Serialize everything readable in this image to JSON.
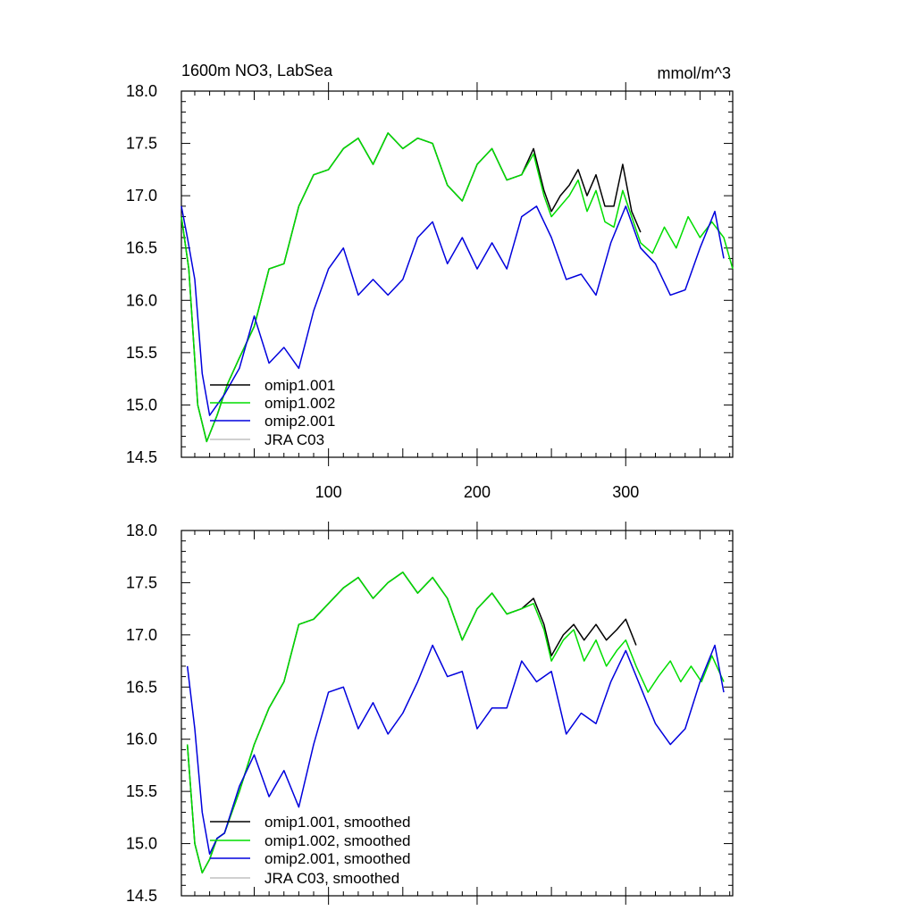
{
  "colors": {
    "omip1_001": "#000000",
    "omip1_002": "#00dd00",
    "omip2_001": "#0000dd",
    "jra_c03": "#c0c0c0"
  },
  "chart_data": [
    {
      "type": "line",
      "title": "1600m NO3, LabSea",
      "units": "mmol/m^3",
      "xlim": [
        1,
        372
      ],
      "ylim": [
        14.5,
        18.0
      ],
      "xticks": [
        100,
        200,
        300
      ],
      "xtick_labels": [
        "100",
        "200",
        "300"
      ],
      "yticks": [
        14.5,
        15.0,
        15.5,
        16.0,
        16.5,
        17.0,
        17.5,
        18.0
      ],
      "ytick_labels": [
        "14.5",
        "15.0",
        "15.5",
        "16.0",
        "16.5",
        "17.0",
        "17.5",
        "18.0"
      ],
      "legend": [
        "omip1.001",
        "omip1.002",
        "omip2.001",
        "JRA C03"
      ],
      "series": [
        {
          "name": "omip1.001",
          "color_key": "omip1_001",
          "x": [
            1,
            6,
            12,
            18,
            25,
            32,
            40,
            50,
            60,
            70,
            80,
            90,
            100,
            110,
            120,
            130,
            140,
            150,
            160,
            170,
            180,
            190,
            200,
            210,
            220,
            230,
            238,
            245,
            250,
            256,
            262,
            268,
            274,
            280,
            286,
            292,
            298,
            304,
            310
          ],
          "y": [
            16.8,
            16.3,
            15.0,
            14.65,
            14.9,
            15.2,
            15.45,
            15.75,
            16.3,
            16.35,
            16.9,
            17.2,
            17.25,
            17.45,
            17.55,
            17.3,
            17.6,
            17.45,
            17.55,
            17.5,
            17.1,
            16.95,
            17.3,
            17.45,
            17.15,
            17.2,
            17.45,
            17.05,
            16.85,
            17.0,
            17.1,
            17.25,
            17.0,
            17.2,
            16.9,
            16.9,
            17.3,
            16.85,
            16.65
          ]
        },
        {
          "name": "omip1.002",
          "color_key": "omip1_002",
          "x": [
            1,
            6,
            12,
            18,
            25,
            32,
            40,
            50,
            60,
            70,
            80,
            90,
            100,
            110,
            120,
            130,
            140,
            150,
            160,
            170,
            180,
            190,
            200,
            210,
            220,
            230,
            238,
            245,
            250,
            256,
            262,
            268,
            274,
            280,
            286,
            292,
            298,
            304,
            310,
            318,
            326,
            334,
            342,
            350,
            358,
            366,
            372
          ],
          "y": [
            16.8,
            16.3,
            15.0,
            14.65,
            14.9,
            15.2,
            15.45,
            15.75,
            16.3,
            16.35,
            16.9,
            17.2,
            17.25,
            17.45,
            17.55,
            17.3,
            17.6,
            17.45,
            17.55,
            17.5,
            17.1,
            16.95,
            17.3,
            17.45,
            17.15,
            17.2,
            17.4,
            17.0,
            16.8,
            16.9,
            17.0,
            17.15,
            16.85,
            17.05,
            16.75,
            16.7,
            17.05,
            16.8,
            16.55,
            16.45,
            16.7,
            16.5,
            16.8,
            16.6,
            16.75,
            16.6,
            16.3
          ]
        },
        {
          "name": "omip2.001",
          "color_key": "omip2_001",
          "x": [
            1,
            5,
            10,
            15,
            20,
            25,
            30,
            40,
            50,
            60,
            70,
            80,
            90,
            100,
            110,
            120,
            130,
            140,
            150,
            160,
            170,
            180,
            190,
            200,
            210,
            220,
            230,
            240,
            250,
            260,
            270,
            280,
            290,
            300,
            310,
            320,
            330,
            340,
            350,
            360,
            366
          ],
          "y": [
            16.9,
            16.6,
            16.2,
            15.3,
            14.9,
            15.0,
            15.1,
            15.35,
            15.85,
            15.4,
            15.55,
            15.35,
            15.9,
            16.3,
            16.5,
            16.05,
            16.2,
            16.05,
            16.2,
            16.6,
            16.75,
            16.35,
            16.6,
            16.3,
            16.55,
            16.3,
            16.8,
            16.9,
            16.6,
            16.2,
            16.25,
            16.05,
            16.55,
            16.9,
            16.5,
            16.35,
            16.05,
            16.1,
            16.5,
            16.85,
            16.4
          ]
        },
        {
          "name": "JRA C03",
          "color_key": "jra_c03",
          "x": [],
          "y": []
        }
      ]
    },
    {
      "type": "line",
      "xlim": [
        1,
        372
      ],
      "ylim": [
        14.5,
        18.0
      ],
      "xticks": [
        100,
        200,
        300
      ],
      "yticks": [
        14.5,
        15.0,
        15.5,
        16.0,
        16.5,
        17.0,
        17.5,
        18.0
      ],
      "ytick_labels": [
        "14.5",
        "15.0",
        "15.5",
        "16.0",
        "16.5",
        "17.0",
        "17.5",
        "18.0"
      ],
      "legend": [
        "omip1.001, smoothed",
        "omip1.002, smoothed",
        "omip2.001, smoothed",
        "JRA C03, smoothed"
      ],
      "series": [
        {
          "name": "omip1.001, smoothed",
          "color_key": "omip1_001",
          "x": [
            5,
            10,
            15,
            20,
            25,
            30,
            35,
            40,
            50,
            60,
            70,
            80,
            90,
            100,
            110,
            120,
            130,
            140,
            150,
            160,
            170,
            180,
            190,
            200,
            210,
            220,
            230,
            238,
            245,
            250,
            258,
            265,
            272,
            280,
            287,
            294,
            300,
            307
          ],
          "y": [
            15.95,
            15.0,
            14.72,
            14.85,
            15.05,
            15.1,
            15.3,
            15.5,
            15.95,
            16.3,
            16.55,
            17.1,
            17.15,
            17.3,
            17.45,
            17.55,
            17.35,
            17.5,
            17.6,
            17.4,
            17.55,
            17.35,
            16.95,
            17.25,
            17.4,
            17.2,
            17.25,
            17.35,
            17.1,
            16.8,
            17.0,
            17.1,
            16.95,
            17.1,
            16.95,
            17.05,
            17.15,
            16.9
          ]
        },
        {
          "name": "omip1.002, smoothed",
          "color_key": "omip1_002",
          "x": [
            5,
            10,
            15,
            20,
            25,
            30,
            35,
            40,
            50,
            60,
            70,
            80,
            90,
            100,
            110,
            120,
            130,
            140,
            150,
            160,
            170,
            180,
            190,
            200,
            210,
            220,
            230,
            238,
            245,
            250,
            258,
            265,
            272,
            280,
            287,
            294,
            300,
            307,
            315,
            322,
            330,
            337,
            344,
            351,
            358,
            366
          ],
          "y": [
            15.95,
            15.0,
            14.72,
            14.85,
            15.05,
            15.1,
            15.3,
            15.5,
            15.95,
            16.3,
            16.55,
            17.1,
            17.15,
            17.3,
            17.45,
            17.55,
            17.35,
            17.5,
            17.6,
            17.4,
            17.55,
            17.35,
            16.95,
            17.25,
            17.4,
            17.2,
            17.25,
            17.3,
            17.05,
            16.75,
            16.95,
            17.05,
            16.75,
            16.95,
            16.7,
            16.85,
            16.95,
            16.7,
            16.45,
            16.6,
            16.75,
            16.55,
            16.7,
            16.55,
            16.8,
            16.55
          ]
        },
        {
          "name": "omip2.001, smoothed",
          "color_key": "omip2_001",
          "x": [
            5,
            10,
            15,
            20,
            25,
            30,
            40,
            50,
            60,
            70,
            80,
            90,
            100,
            110,
            120,
            130,
            140,
            150,
            160,
            170,
            180,
            190,
            200,
            210,
            220,
            230,
            240,
            250,
            260,
            270,
            280,
            290,
            300,
            310,
            320,
            330,
            340,
            350,
            360,
            366
          ],
          "y": [
            16.7,
            16.1,
            15.3,
            14.9,
            15.05,
            15.1,
            15.55,
            15.85,
            15.45,
            15.7,
            15.35,
            15.95,
            16.45,
            16.5,
            16.1,
            16.35,
            16.05,
            16.25,
            16.55,
            16.9,
            16.6,
            16.65,
            16.1,
            16.3,
            16.3,
            16.75,
            16.55,
            16.65,
            16.05,
            16.25,
            16.15,
            16.55,
            16.85,
            16.5,
            16.15,
            15.95,
            16.1,
            16.55,
            16.9,
            16.45
          ]
        },
        {
          "name": "JRA C03, smoothed",
          "color_key": "jra_c03",
          "x": [],
          "y": []
        }
      ]
    }
  ]
}
